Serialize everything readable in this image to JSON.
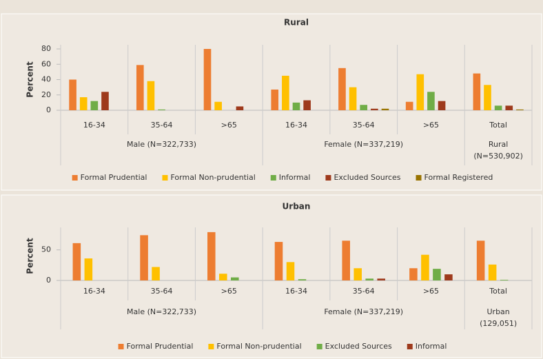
{
  "chart_data": [
    {
      "type": "bar",
      "title": "Rural",
      "ylabel": "Percent",
      "groups": [
        {
          "name": [
            "Male (N=322,733)"
          ],
          "categories": [
            "16-34",
            "35-64",
            ">65"
          ]
        },
        {
          "name": [
            "Female (N=337,219)"
          ],
          "categories": [
            "16-34",
            "35-64",
            ">65"
          ]
        },
        {
          "name": [
            "Rural",
            "(N=530,902)"
          ],
          "categories": [
            "Total"
          ]
        }
      ],
      "series": [
        {
          "name": "Formal Prudential",
          "color": "#ed7d31",
          "values": [
            40,
            59,
            80,
            27,
            55,
            11,
            48
          ]
        },
        {
          "name": "Formal Non-prudential",
          "color": "#ffc000",
          "values": [
            17,
            38,
            11,
            45,
            30,
            47,
            33
          ]
        },
        {
          "name": "Informal",
          "color": "#70ad47",
          "values": [
            12,
            1,
            0,
            10,
            7,
            24,
            6
          ]
        },
        {
          "name": "Excluded Sources",
          "color": "#9e3a1c",
          "values": [
            24,
            0,
            5,
            13,
            2,
            12,
            6
          ]
        },
        {
          "name": "Formal Registered",
          "color": "#997300",
          "values": [
            0,
            0,
            0,
            0,
            2,
            0,
            1
          ]
        }
      ],
      "ylim": [
        0,
        80
      ],
      "yticks": [
        0,
        20,
        40,
        60,
        80
      ]
    },
    {
      "type": "bar",
      "title": "Urban",
      "ylabel": "Percent",
      "groups": [
        {
          "name": [
            "Male (N=322,733)"
          ],
          "categories": [
            "16-34",
            "35-64",
            ">65"
          ]
        },
        {
          "name": [
            "Female (N=337,219)"
          ],
          "categories": [
            "16-34",
            "35-64",
            ">65"
          ]
        },
        {
          "name": [
            "Urban",
            "(129,051)"
          ],
          "categories": [
            "Total"
          ]
        }
      ],
      "series": [
        {
          "name": "Formal Prudential",
          "color": "#ed7d31",
          "values": [
            61,
            74,
            79,
            63,
            65,
            20,
            65
          ]
        },
        {
          "name": "Formal Non-prudential",
          "color": "#ffc000",
          "values": [
            36,
            22,
            11,
            30,
            20,
            42,
            26
          ]
        },
        {
          "name": "Excluded Sources",
          "color": "#70ad47",
          "values": [
            0,
            0,
            5,
            2,
            3,
            19,
            1
          ]
        },
        {
          "name": "Informal",
          "color": "#9e3a1c",
          "values": [
            0,
            0,
            0,
            0,
            3,
            10,
            0
          ]
        }
      ],
      "ylim": [
        0,
        80
      ],
      "yticks": [
        0,
        50
      ]
    }
  ]
}
